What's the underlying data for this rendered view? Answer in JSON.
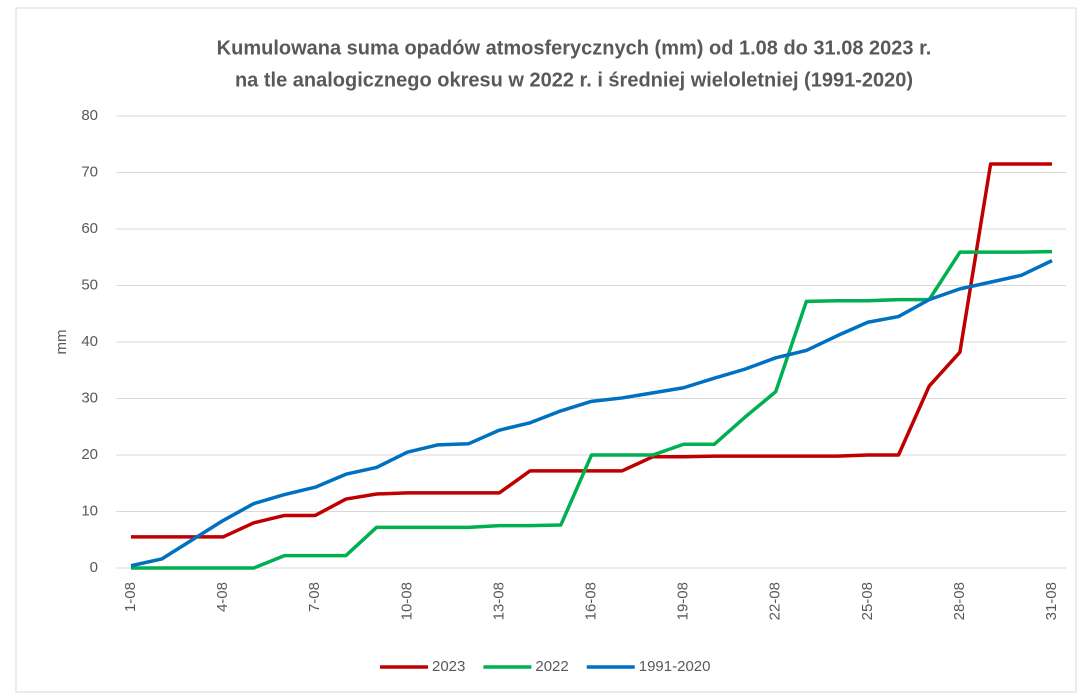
{
  "chart_data": {
    "type": "line",
    "title": [
      "Kumulowana suma opadów atmosferycznych (mm) od 1.08 do 31.08 2023 r.",
      "na tle analogicznego okresu w 2022 r. i średniej wieloletniej (1991-2020)"
    ],
    "y_label": "mm",
    "categories": [
      "1-08",
      null,
      null,
      "4-08",
      null,
      null,
      "7-08",
      null,
      null,
      "10-08",
      null,
      null,
      "13-08",
      null,
      null,
      "16-08",
      null,
      null,
      "19-08",
      null,
      null,
      "22-08",
      null,
      null,
      "25-08",
      null,
      null,
      "28-08",
      null,
      null,
      "31-08"
    ],
    "series": [
      {
        "name": "2023",
        "color": "#c00000",
        "values": [
          5.5,
          5.5,
          5.5,
          5.5,
          8,
          9.3,
          9.3,
          12.2,
          13.1,
          13.3,
          13.3,
          13.3,
          13.3,
          17.2,
          17.2,
          17.2,
          17.2,
          19.7,
          19.7,
          19.8,
          19.8,
          19.8,
          19.8,
          19.8,
          20,
          20,
          32.2,
          38.2,
          71.5,
          71.5,
          71.5
        ]
      },
      {
        "name": "2022",
        "color": "#00b050",
        "values": [
          0,
          0,
          0,
          0,
          0,
          2.2,
          2.2,
          2.2,
          7.2,
          7.2,
          7.2,
          7.2,
          7.5,
          7.5,
          7.6,
          20,
          20,
          20,
          21.9,
          21.9,
          26.7,
          31.2,
          47.2,
          47.3,
          47.3,
          47.5,
          47.5,
          55.9,
          55.9,
          55.9,
          56
        ]
      },
      {
        "name": "1991-2020",
        "color": "#0070c0",
        "values": [
          0.4,
          1.6,
          5,
          8.4,
          11.4,
          13,
          14.3,
          16.6,
          17.8,
          20.5,
          21.8,
          22,
          24.4,
          25.7,
          27.8,
          29.5,
          30.1,
          31,
          31.9,
          33.6,
          35.2,
          37.2,
          38.5,
          41.1,
          43.5,
          44.5,
          47.5,
          49.4,
          50.6,
          51.8,
          54.4
        ]
      }
    ],
    "ylim": [
      0,
      80
    ],
    "yticks": [
      0,
      10,
      20,
      30,
      40,
      50,
      60,
      70,
      80
    ],
    "grid": true,
    "legend": "bottom"
  }
}
